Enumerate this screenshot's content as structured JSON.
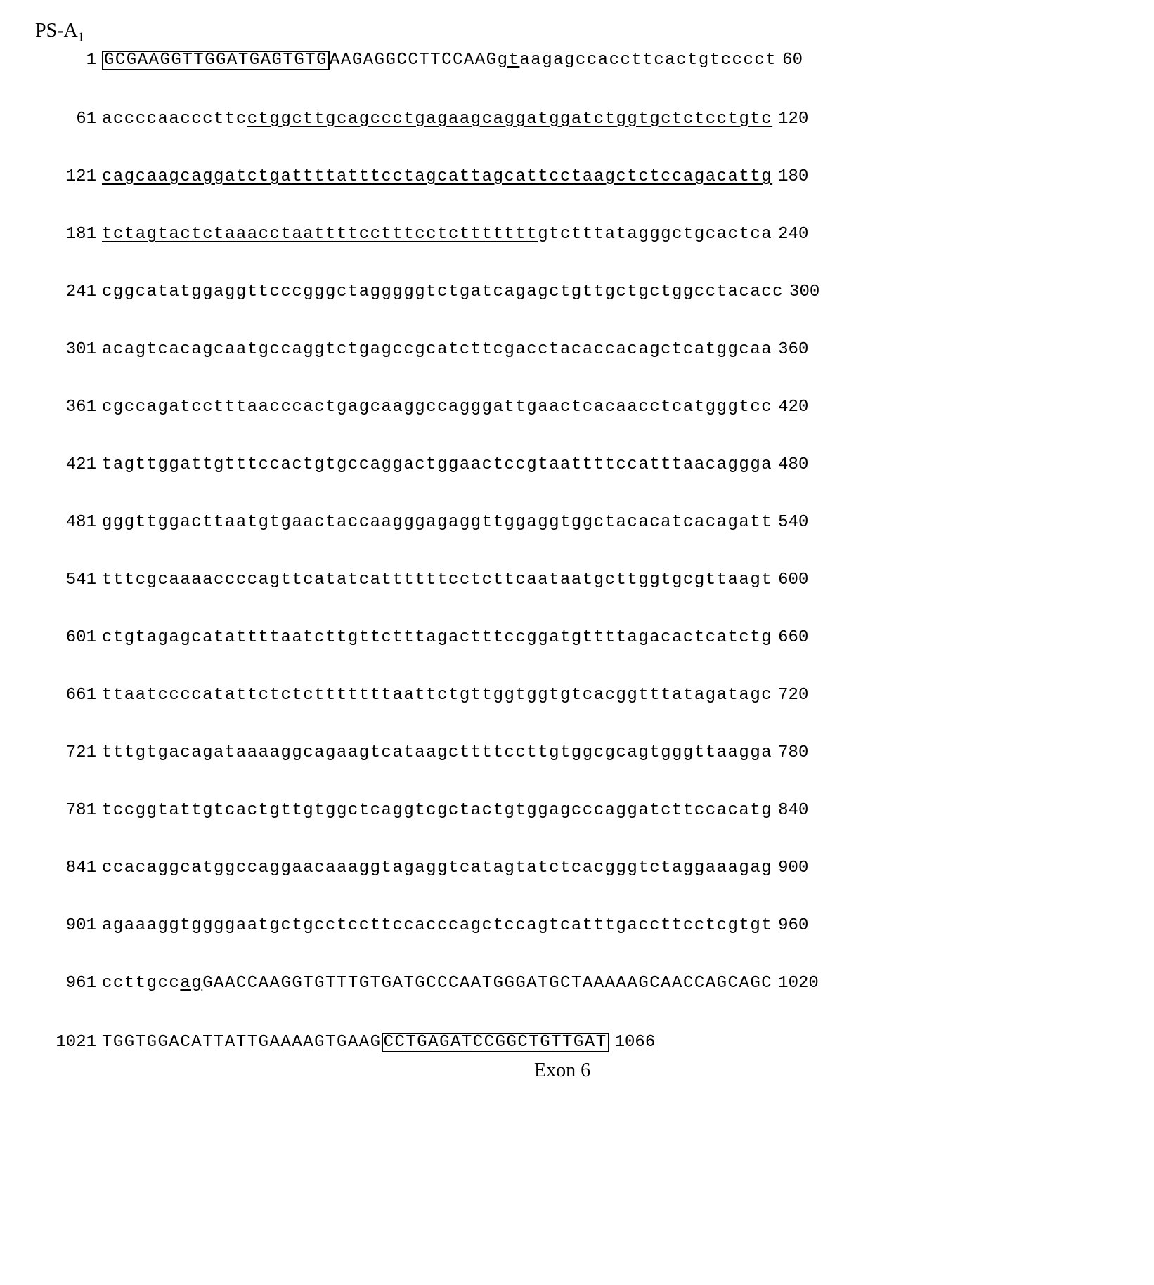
{
  "header": {
    "prefix": "PS-A",
    "subscript": "1"
  },
  "rows": [
    {
      "start": "1",
      "end": "60",
      "segments": [
        {
          "text": "GCGAAGGTTGGATGAGTGTG",
          "style": "boxed"
        },
        {
          "text": "AAGAGGCCTTCCAAG",
          "style": "plain"
        },
        {
          "text": "gt",
          "style": "splice"
        },
        {
          "text": "aagagccaccttcactgtcccct",
          "style": "plain"
        }
      ]
    },
    {
      "start": "61",
      "end": "120",
      "segments": [
        {
          "text": "accccaacccttc",
          "style": "plain"
        },
        {
          "text": "ctggcttgcagccctgagaagcaggatggatctggtgctctcctgtc",
          "style": "underlined"
        }
      ]
    },
    {
      "start": "121",
      "end": "180",
      "segments": [
        {
          "text": "cagcaagcaggatctgattttatttcctagcattagcattcctaagctctccagacattg",
          "style": "underlined"
        }
      ]
    },
    {
      "start": "181",
      "end": "240",
      "segments": [
        {
          "text": "tctagtactctaaacctaattttcctttcctcttttttt",
          "style": "underlined"
        },
        {
          "text": "gtctttatagggctgcactca",
          "style": "plain"
        }
      ]
    },
    {
      "start": "241",
      "end": "300",
      "segments": [
        {
          "text": "cggcatatggaggttcccgggctagggggtctgatcagagctgttgctgctggcctacacc",
          "style": "plain"
        }
      ]
    },
    {
      "start": "301",
      "end": "360",
      "segments": [
        {
          "text": "acagtcacagcaatgccaggtctgagccgcatcttcgacctacaccacagctcatggcaa",
          "style": "plain"
        }
      ]
    },
    {
      "start": "361",
      "end": "420",
      "segments": [
        {
          "text": "cgccagatcctttaacccactgagcaaggccagggattgaactcacaacctcatgggtcc",
          "style": "plain"
        }
      ]
    },
    {
      "start": "421",
      "end": "480",
      "segments": [
        {
          "text": "tagttggattgtttccactgtgccaggactggaactccgtaattttccatttaacaggga",
          "style": "plain"
        }
      ]
    },
    {
      "start": "481",
      "end": "540",
      "segments": [
        {
          "text": "gggttggacttaatgtgaactaccaagggagaggttggaggtggctacacatcacagatt",
          "style": "plain"
        }
      ]
    },
    {
      "start": "541",
      "end": "600",
      "segments": [
        {
          "text": "tttcgcaaaaccccagttcatatcattttttcctcttcaataatgcttggtgcgttaagt",
          "style": "plain"
        }
      ]
    },
    {
      "start": "601",
      "end": "660",
      "segments": [
        {
          "text": "ctgtagagcatattttaatcttgttctttagactttccggatgttttagacactcatctg",
          "style": "plain"
        }
      ]
    },
    {
      "start": "661",
      "end": "720",
      "segments": [
        {
          "text": "ttaatccccatattctctctttttttaattctgttggtggtgtcacggtttatagatagc",
          "style": "plain"
        }
      ]
    },
    {
      "start": "721",
      "end": "780",
      "segments": [
        {
          "text": "tttgtgacagataaaaggcagaagtcataagcttttccttgtggcgcagtgggttaagga",
          "style": "plain"
        }
      ]
    },
    {
      "start": "781",
      "end": "840",
      "segments": [
        {
          "text": "tccggtattgtcactgttgtggctcaggtcgctactgtggagcccaggatcttccacatg",
          "style": "plain"
        }
      ]
    },
    {
      "start": "841",
      "end": "900",
      "segments": [
        {
          "text": "ccacaggcatggccaggaacaaaggtagaggtcatagtatctcacgggtctaggaaagag",
          "style": "plain"
        }
      ]
    },
    {
      "start": "901",
      "end": "960",
      "segments": [
        {
          "text": "agaaaggtggggaatgctgcctccttccacccagctccagtcatttgaccttcctcgtgt",
          "style": "plain"
        }
      ]
    },
    {
      "start": "961",
      "end": "1020",
      "segments": [
        {
          "text": "ccttgcc",
          "style": "plain"
        },
        {
          "text": "ag",
          "style": "splice"
        },
        {
          "text": "GAACCAAGGTGTTTGTGATGCCCAATGGGATGCTAAAAAGCAACCAGCAGC",
          "style": "plain"
        }
      ]
    },
    {
      "start": "1021",
      "end": "1066",
      "segments": [
        {
          "text": "TGGTGGACATTATTGAAAAGTGAAG",
          "style": "plain"
        },
        {
          "text": "CCTGAGATCCGGCTGTTGAT",
          "style": "boxed"
        }
      ]
    }
  ],
  "exon_label": "Exon 6",
  "colors": {
    "background": "#ffffff",
    "text": "#000000",
    "box_border": "#000000"
  },
  "typography": {
    "mono_family": "Courier New",
    "serif_family": "Times New Roman",
    "base_fontsize": 24,
    "header_fontsize": 28,
    "letter_spacing": 1.5,
    "row_spacing": 58
  }
}
